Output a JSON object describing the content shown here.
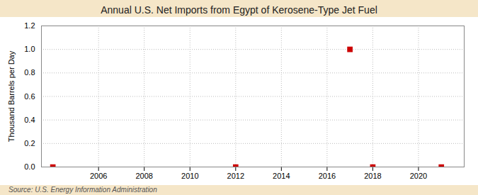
{
  "chart_data": {
    "type": "scatter",
    "title": "Annual U.S. Net Imports from Egypt of Kerosene-Type Jet Fuel",
    "ylabel": "Thousand Barrels per Day",
    "source": "Source: U.S. Energy Information Administration",
    "x": [
      2004,
      2012,
      2017,
      2018,
      2021
    ],
    "values": [
      0.0,
      0.0,
      1.0,
      0.0,
      0.0
    ],
    "color": "#cc0000",
    "marker": "square",
    "xlim": [
      2003.5,
      2022
    ],
    "xticks": [
      2006,
      2008,
      2010,
      2012,
      2014,
      2016,
      2018,
      2020
    ],
    "ylim": [
      0.0,
      1.2
    ],
    "yticks": [
      {
        "value": 0.0,
        "label": "0.0"
      },
      0.2,
      0.4,
      0.6,
      0.8,
      {
        "value": 1.0,
        "label": "1.0"
      },
      1.2
    ],
    "grid": true
  }
}
